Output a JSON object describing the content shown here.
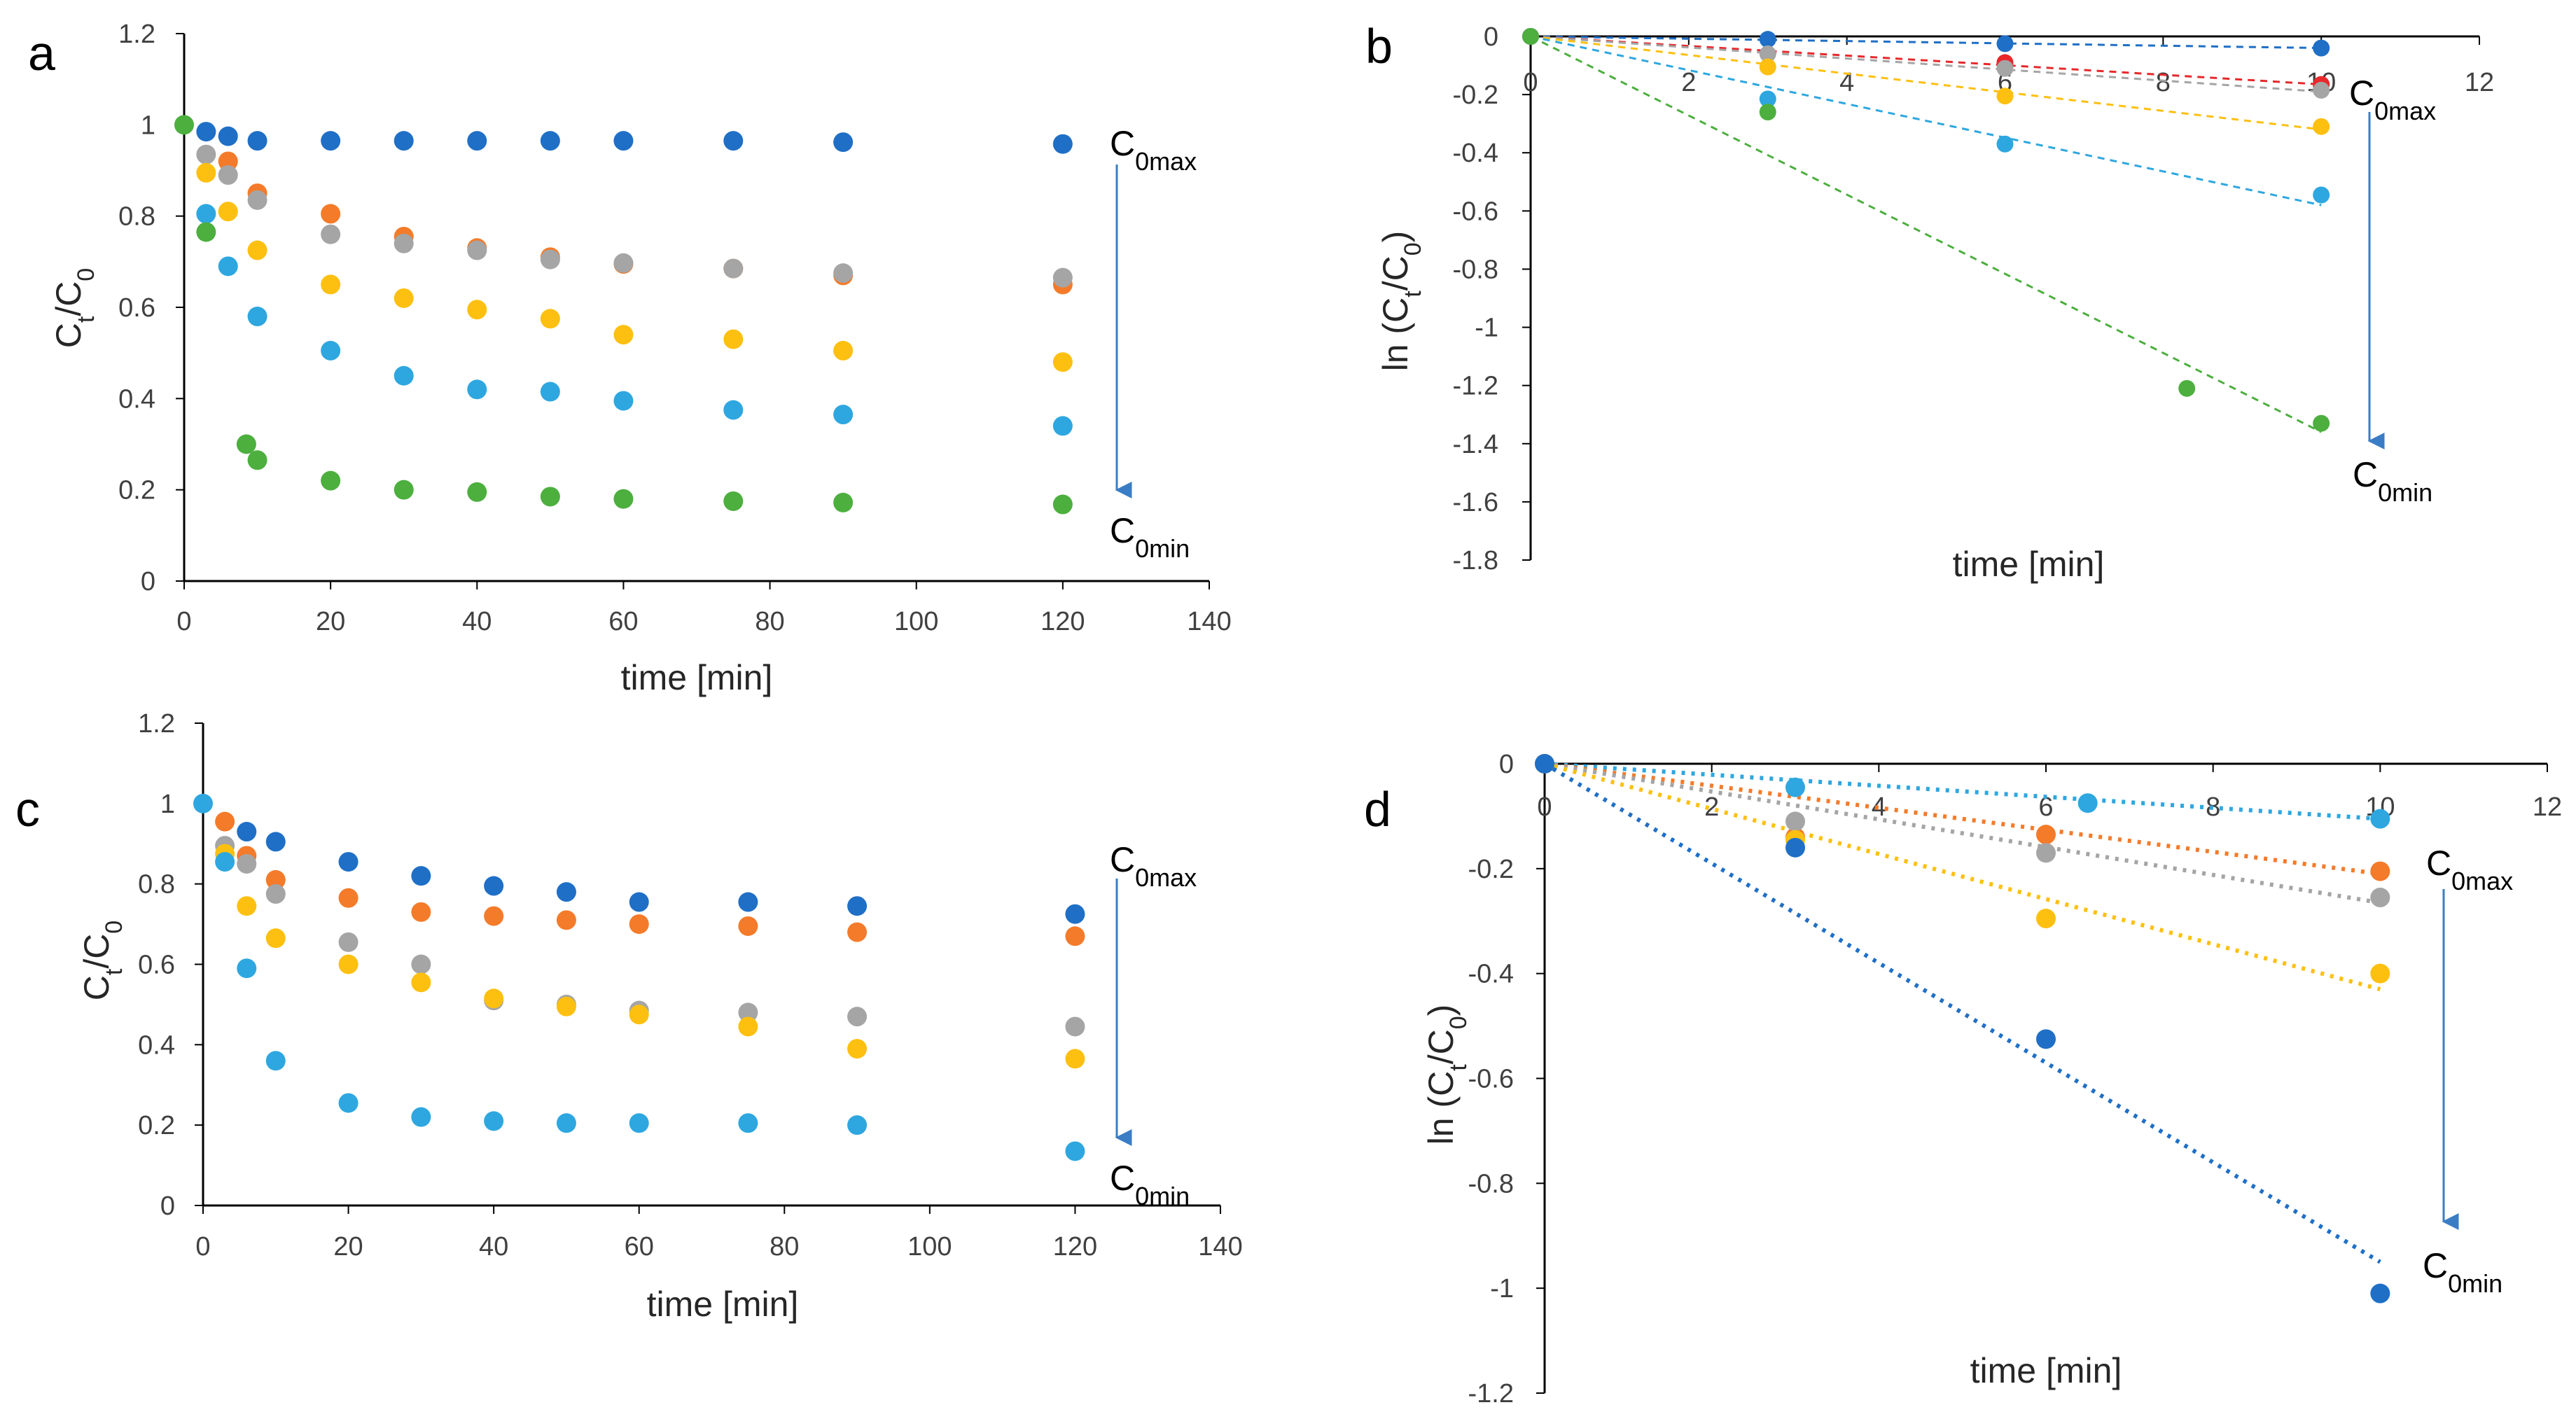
{
  "figure": {
    "panel_letters": [
      "a",
      "b",
      "c",
      "d"
    ],
    "colors": {
      "dark_blue": "#1f6fc6",
      "orange": "#f47b2a",
      "gray": "#a5a5a5",
      "yellow": "#fdc010",
      "light_blue": "#2ea7e0",
      "green": "#4caf3e",
      "red": "#e8282b",
      "arrow": "#3b7dc4",
      "axis": "#000000"
    }
  },
  "chart_data": [
    {
      "panel": "a",
      "type": "scatter",
      "xlabel": "time [min]",
      "ylabel_main": "C",
      "ylabel_sub_t": "t",
      "ylabel_slash": "/C",
      "ylabel_sub_0": "0",
      "xlim": [
        0,
        140
      ],
      "ylim": [
        0,
        1.2
      ],
      "xticks": [
        "0",
        "20",
        "40",
        "60",
        "80",
        "100",
        "120",
        "140"
      ],
      "yticks": [
        "0",
        "0.2",
        "0.4",
        "0.6",
        "0.8",
        "1",
        "1.2"
      ],
      "annotations": {
        "top_main": "C",
        "top_sub": "0max",
        "bottom_main": "C",
        "bottom_sub": "0min"
      },
      "series": [
        {
          "color": "dark_blue",
          "x": [
            3,
            6,
            10,
            20,
            30,
            40,
            50,
            60,
            75,
            90,
            120
          ],
          "y": [
            0.985,
            0.975,
            0.965,
            0.965,
            0.965,
            0.965,
            0.965,
            0.965,
            0.965,
            0.962,
            0.958
          ]
        },
        {
          "color": "orange",
          "x": [
            6,
            10,
            20,
            30,
            40,
            50,
            60,
            75,
            90,
            120
          ],
          "y": [
            0.92,
            0.85,
            0.805,
            0.755,
            0.73,
            0.71,
            0.695,
            0.685,
            0.67,
            0.65
          ]
        },
        {
          "color": "gray",
          "x": [
            3,
            6,
            10,
            20,
            30,
            40,
            50,
            60,
            75,
            90,
            120
          ],
          "y": [
            0.935,
            0.89,
            0.835,
            0.76,
            0.74,
            0.725,
            0.705,
            0.697,
            0.685,
            0.675,
            0.665
          ]
        },
        {
          "color": "yellow",
          "x": [
            3,
            6,
            10,
            20,
            30,
            40,
            50,
            60,
            75,
            90,
            120
          ],
          "y": [
            0.895,
            0.81,
            0.725,
            0.65,
            0.62,
            0.595,
            0.575,
            0.54,
            0.53,
            0.505,
            0.48
          ]
        },
        {
          "color": "light_blue",
          "x": [
            3,
            6,
            10,
            20,
            30,
            40,
            50,
            60,
            75,
            90,
            120
          ],
          "y": [
            0.805,
            0.69,
            0.58,
            0.505,
            0.45,
            0.42,
            0.415,
            0.395,
            0.375,
            0.365,
            0.34
          ]
        },
        {
          "color": "green",
          "x": [
            0,
            3,
            8.5,
            10,
            20,
            30,
            40,
            50,
            60,
            75,
            90,
            120
          ],
          "y": [
            1.0,
            0.765,
            0.3,
            0.265,
            0.22,
            0.2,
            0.195,
            0.185,
            0.18,
            0.175,
            0.172,
            0.168
          ]
        }
      ]
    },
    {
      "panel": "b",
      "type": "scatter",
      "xlabel": "time [min]",
      "ylabel_main": "ln (C",
      "ylabel_sub_t": "t",
      "ylabel_slash": "/C",
      "ylabel_sub_0": "0",
      "ylabel_close": ")",
      "xlim": [
        0,
        12
      ],
      "ylim": [
        -1.8,
        0
      ],
      "xticks": [
        "0",
        "2",
        "4",
        "6",
        "8",
        "10",
        "12"
      ],
      "yticks": [
        "0",
        "-0.2",
        "-0.4",
        "-0.6",
        "-0.8",
        "-1",
        "-1.2",
        "-1.4",
        "-1.6",
        "-1.8"
      ],
      "annotations": {
        "top_main": "C",
        "top_sub": "0max",
        "bottom_main": "C",
        "bottom_sub": "0min"
      },
      "series": [
        {
          "color": "dark_blue",
          "x": [
            0,
            3,
            6,
            10
          ],
          "y": [
            0,
            -0.01,
            -0.025,
            -0.04
          ],
          "fit": [
            0,
            -0.04
          ]
        },
        {
          "color": "red",
          "x": [
            0,
            6,
            10
          ],
          "y": [
            0,
            -0.09,
            -0.165
          ],
          "fit": [
            0,
            -0.165
          ]
        },
        {
          "color": "gray",
          "x": [
            0,
            3,
            6,
            10
          ],
          "y": [
            0,
            -0.06,
            -0.11,
            -0.185
          ],
          "fit": [
            0,
            -0.19
          ]
        },
        {
          "color": "yellow",
          "x": [
            0,
            3,
            6,
            10
          ],
          "y": [
            0,
            -0.105,
            -0.205,
            -0.31
          ],
          "fit": [
            0,
            -0.32
          ]
        },
        {
          "color": "light_blue",
          "x": [
            0,
            3,
            6,
            10
          ],
          "y": [
            0,
            -0.215,
            -0.37,
            -0.545
          ],
          "fit": [
            0,
            -0.58
          ]
        },
        {
          "color": "green",
          "x": [
            0,
            3,
            8.3,
            10
          ],
          "y": [
            0,
            -0.26,
            -1.21,
            -1.33
          ],
          "fit": [
            0,
            -1.36
          ]
        }
      ]
    },
    {
      "panel": "c",
      "type": "scatter",
      "xlabel": "time [min]",
      "ylabel_main": "C",
      "ylabel_sub_t": "t",
      "ylabel_slash": "/C",
      "ylabel_sub_0": "0",
      "xlim": [
        0,
        140
      ],
      "ylim": [
        0,
        1.2
      ],
      "xticks": [
        "0",
        "20",
        "40",
        "60",
        "80",
        "100",
        "120",
        "140"
      ],
      "yticks": [
        "0",
        "0.2",
        "0.4",
        "0.6",
        "0.8",
        "1",
        "1.2"
      ],
      "annotations": {
        "top_main": "C",
        "top_sub": "0max",
        "bottom_main": "C",
        "bottom_sub": "0min"
      },
      "series": [
        {
          "color": "dark_blue",
          "x": [
            6,
            10,
            20,
            30,
            40,
            50,
            60,
            75,
            90,
            120
          ],
          "y": [
            0.93,
            0.905,
            0.855,
            0.82,
            0.795,
            0.78,
            0.755,
            0.755,
            0.745,
            0.725
          ]
        },
        {
          "color": "orange",
          "x": [
            3,
            6,
            10,
            20,
            30,
            40,
            50,
            60,
            75,
            90,
            120
          ],
          "y": [
            0.955,
            0.87,
            0.81,
            0.765,
            0.73,
            0.72,
            0.71,
            0.7,
            0.695,
            0.68,
            0.67
          ]
        },
        {
          "color": "gray",
          "x": [
            3,
            6,
            10,
            20,
            30,
            40,
            50,
            60,
            75,
            90,
            120
          ],
          "y": [
            0.895,
            0.85,
            0.775,
            0.655,
            0.6,
            0.51,
            0.5,
            0.485,
            0.48,
            0.47,
            0.445
          ]
        },
        {
          "color": "yellow",
          "x": [
            3,
            6,
            10,
            20,
            30,
            40,
            50,
            60,
            75,
            90,
            120
          ],
          "y": [
            0.875,
            0.745,
            0.665,
            0.6,
            0.555,
            0.515,
            0.495,
            0.475,
            0.445,
            0.39,
            0.365
          ]
        },
        {
          "color": "light_blue",
          "x": [
            0,
            3,
            6,
            10,
            20,
            30,
            40,
            50,
            60,
            75,
            90,
            120
          ],
          "y": [
            1.0,
            0.855,
            0.59,
            0.36,
            0.255,
            0.22,
            0.21,
            0.205,
            0.205,
            0.205,
            0.2,
            0.135
          ]
        }
      ]
    },
    {
      "panel": "d",
      "type": "scatter",
      "xlabel": "time [min]",
      "ylabel_main": "ln (C",
      "ylabel_sub_t": "t",
      "ylabel_slash": "/C",
      "ylabel_sub_0": "0",
      "ylabel_close": ")",
      "xlim": [
        0,
        12
      ],
      "ylim": [
        -1.2,
        0
      ],
      "xticks": [
        "0",
        "2",
        "4",
        "6",
        "8",
        "10",
        "12"
      ],
      "yticks": [
        "0",
        "-0.2",
        "-0.4",
        "-0.6",
        "-0.8",
        "-1",
        "-1.2"
      ],
      "annotations": {
        "top_main": "C",
        "top_sub": "0max",
        "bottom_main": "C",
        "bottom_sub": "0min"
      },
      "series": [
        {
          "color": "light_blue",
          "x": [
            0,
            3,
            6.5,
            10
          ],
          "y": [
            0,
            -0.045,
            -0.075,
            -0.105
          ],
          "fit": [
            0,
            -0.105
          ]
        },
        {
          "color": "orange",
          "x": [
            0,
            3,
            6,
            10
          ],
          "y": [
            0,
            -0.14,
            -0.135,
            -0.205
          ],
          "fit": [
            0,
            -0.21
          ]
        },
        {
          "color": "gray",
          "x": [
            0,
            3,
            6,
            10
          ],
          "y": [
            0,
            -0.11,
            -0.17,
            -0.255
          ],
          "fit": [
            0,
            -0.265
          ]
        },
        {
          "color": "yellow",
          "x": [
            0,
            3,
            6,
            10
          ],
          "y": [
            0,
            -0.145,
            -0.295,
            -0.4
          ],
          "fit": [
            0,
            -0.43
          ]
        },
        {
          "color": "dark_blue",
          "x": [
            0,
            3,
            6,
            10
          ],
          "y": [
            0,
            -0.16,
            -0.525,
            -1.01
          ],
          "fit": [
            0,
            -0.95
          ]
        }
      ]
    }
  ]
}
